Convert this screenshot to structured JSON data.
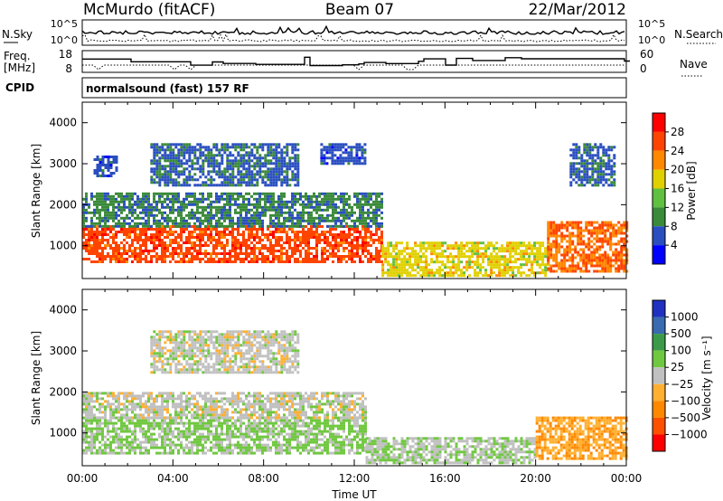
{
  "header": {
    "station": "McMurdo (fitACF)",
    "beam": "Beam 07",
    "date": "22/Mar/2012"
  },
  "noise_panel": {
    "left_label": "N.Sky",
    "right_label": "N.Search",
    "left_ticks": [
      "10^5",
      "10^0"
    ],
    "right_ticks": [
      "10^5",
      "10^0"
    ]
  },
  "freq_panel": {
    "left_label_line1": "Freq.",
    "left_label_line2": "[MHz]",
    "right_label": "Nave",
    "left_ticks": [
      "18",
      "8"
    ],
    "right_ticks": [
      "60",
      "0"
    ]
  },
  "cpid": {
    "label": "CPID",
    "text": "normalsound (fast) 157 RF"
  },
  "chart_data": [
    {
      "type": "heatmap",
      "title": "",
      "xlabel": "",
      "ylabel": "Slant Range [km]",
      "x_ticks": [
        "00:00",
        "04:00",
        "08:00",
        "12:00",
        "16:00",
        "20:00",
        "00:00"
      ],
      "y_ticks": [
        1000,
        2000,
        3000,
        4000
      ],
      "ylim": [
        200,
        4500
      ],
      "xlim_hours": [
        0,
        24
      ],
      "colorbar": {
        "label": "Power [dB]",
        "ticks": [
          "4",
          "8",
          "12",
          "16",
          "20",
          "24",
          "28"
        ],
        "colors": [
          "#0000ff",
          "#2a4ec0",
          "#3a8a3a",
          "#60c040",
          "#e0d000",
          "#ff8800",
          "#ff4400",
          "#ff0000"
        ],
        "range": [
          0,
          32
        ]
      },
      "bands": [
        {
          "t0": 0.0,
          "t1": 13.2,
          "r0": 600,
          "r1": 1500,
          "level": 26
        },
        {
          "t0": 0.0,
          "t1": 13.2,
          "r0": 1500,
          "r1": 2300,
          "level": 9
        },
        {
          "t0": 0.5,
          "t1": 1.5,
          "r0": 2700,
          "r1": 3200,
          "level": 6
        },
        {
          "t0": 3.0,
          "t1": 9.5,
          "r0": 2500,
          "r1": 3500,
          "level": 7
        },
        {
          "t0": 10.5,
          "t1": 12.5,
          "r0": 3000,
          "r1": 3500,
          "level": 6
        },
        {
          "t0": 13.2,
          "t1": 20.5,
          "r0": 300,
          "r1": 1100,
          "level": 18
        },
        {
          "t0": 20.5,
          "t1": 24.0,
          "r0": 400,
          "r1": 1600,
          "level": 24
        },
        {
          "t0": 21.5,
          "t1": 23.5,
          "r0": 2500,
          "r1": 3500,
          "level": 7
        }
      ]
    },
    {
      "type": "heatmap",
      "title": "",
      "xlabel": "Time UT",
      "ylabel": "Slant Range [km]",
      "x_ticks": [
        "00:00",
        "04:00",
        "08:00",
        "12:00",
        "16:00",
        "20:00",
        "00:00"
      ],
      "y_ticks": [
        1000,
        2000,
        3000,
        4000
      ],
      "ylim": [
        200,
        4500
      ],
      "xlim_hours": [
        0,
        24
      ],
      "colorbar": {
        "label": "Velocity [m s⁻¹]",
        "ticks": [
          "1000",
          "500",
          "100",
          "25",
          "−25",
          "−100",
          "−500",
          "−1000"
        ],
        "colors": [
          "#2030c0",
          "#3a6ab0",
          "#3a9a4a",
          "#70c840",
          "#c0c0c0",
          "#ffb030",
          "#ff8800",
          "#ff5000",
          "#ff0000"
        ],
        "range": [
          -1000,
          1000
        ]
      },
      "bands": [
        {
          "t0": 0.0,
          "t1": 12.5,
          "r0": 500,
          "r1": 1400,
          "level": 150
        },
        {
          "t0": 0.0,
          "t1": 12.5,
          "r0": 1400,
          "r1": 2000,
          "level": 0
        },
        {
          "t0": 12.5,
          "t1": 20.0,
          "r0": 300,
          "r1": 900,
          "level": 80
        },
        {
          "t0": 20.0,
          "t1": 24.0,
          "r0": 400,
          "r1": 1400,
          "level": -300
        },
        {
          "t0": 3.0,
          "t1": 9.5,
          "r0": 2500,
          "r1": 3500,
          "level": 0
        }
      ]
    }
  ]
}
